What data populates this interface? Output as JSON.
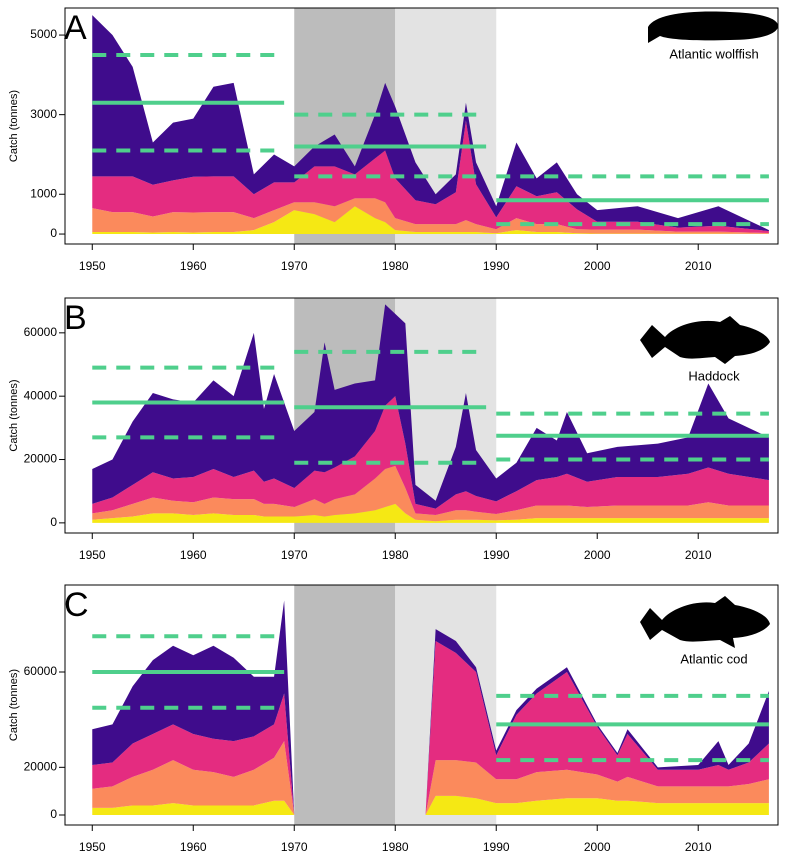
{
  "chart_data": [
    {
      "type": "area",
      "panel_label": "A",
      "species": "Atlantic wolffish",
      "ylabel": "Catch (tonnes)",
      "x": [
        1950,
        1952,
        1954,
        1956,
        1958,
        1960,
        1962,
        1964,
        1966,
        1968,
        1970,
        1972,
        1974,
        1976,
        1978,
        1979,
        1980,
        1982,
        1984,
        1986,
        1987,
        1988,
        1990,
        1992,
        1994,
        1996,
        1998,
        2000,
        2004,
        2008,
        2012,
        2017
      ],
      "series": [
        {
          "color": "#f5e814",
          "values": [
            50,
            50,
            50,
            40,
            50,
            40,
            50,
            50,
            100,
            300,
            600,
            500,
            300,
            700,
            400,
            300,
            100,
            50,
            50,
            50,
            50,
            50,
            20,
            100,
            50,
            50,
            20,
            10,
            10,
            10,
            10,
            5
          ]
        },
        {
          "color": "#fb8a5c",
          "values": [
            600,
            500,
            500,
            400,
            500,
            500,
            500,
            500,
            300,
            300,
            200,
            300,
            400,
            200,
            500,
            500,
            300,
            200,
            200,
            200,
            300,
            200,
            100,
            300,
            200,
            200,
            100,
            100,
            100,
            50,
            50,
            20
          ]
        },
        {
          "color": "#e42c80",
          "values": [
            800,
            900,
            900,
            800,
            800,
            900,
            900,
            900,
            600,
            700,
            500,
            900,
            1000,
            600,
            1000,
            1300,
            1000,
            600,
            500,
            800,
            2500,
            1000,
            300,
            800,
            700,
            800,
            500,
            200,
            200,
            100,
            150,
            50
          ]
        },
        {
          "color": "#3f0c8c",
          "values": [
            4050,
            3550,
            2750,
            1060,
            1450,
            1460,
            2250,
            2350,
            500,
            700,
            400,
            500,
            800,
            200,
            1100,
            1700,
            1800,
            950,
            250,
            450,
            450,
            550,
            280,
            1100,
            450,
            750,
            380,
            290,
            390,
            240,
            490,
            25
          ]
        }
      ],
      "xlim": [
        1947.3,
        2017.9
      ],
      "ylim": [
        -250,
        5680
      ],
      "xticks": [
        1950,
        1960,
        1970,
        1980,
        1990,
        2000,
        2010
      ],
      "yticks": [
        0,
        1000,
        3000,
        5000
      ],
      "shading": [
        {
          "xlim": [
            1970,
            1980
          ],
          "color": "#bcbcbc"
        },
        {
          "xlim": [
            1980,
            1990
          ],
          "color": "#e3e3e3"
        }
      ],
      "period_color": "#4fcf8c",
      "periods": [
        {
          "xlim": [
            1950,
            1969
          ],
          "mean": 3300,
          "upper": 4500,
          "lower": 2100
        },
        {
          "xlim": [
            1970,
            1989
          ],
          "mean": 2200,
          "upper": 3000,
          "lower": 1450
        },
        {
          "xlim": [
            1990,
            2017
          ],
          "mean": 850,
          "upper": 1450,
          "lower": 250
        }
      ]
    },
    {
      "type": "area",
      "panel_label": "B",
      "species": "Haddock",
      "ylabel": "Catch (tonnes)",
      "x": [
        1950,
        1952,
        1954,
        1956,
        1958,
        1960,
        1962,
        1964,
        1966,
        1967,
        1968,
        1970,
        1972,
        1973,
        1974,
        1976,
        1978,
        1979,
        1980,
        1981,
        1982,
        1984,
        1986,
        1987,
        1988,
        1990,
        1992,
        1994,
        1996,
        1997,
        1999,
        2002,
        2006,
        2009,
        2011,
        2013,
        2017
      ],
      "series": [
        {
          "color": "#f5e814",
          "values": [
            1000,
            1500,
            2000,
            3000,
            3000,
            2500,
            3000,
            2500,
            2500,
            2000,
            2000,
            2000,
            2500,
            2000,
            2500,
            3000,
            4000,
            5000,
            6000,
            3000,
            1000,
            500,
            1000,
            1000,
            1000,
            800,
            1000,
            1500,
            1500,
            1500,
            1500,
            1500,
            1500,
            1500,
            1500,
            1500,
            1500
          ]
        },
        {
          "color": "#fb8a5c",
          "values": [
            2000,
            2500,
            4000,
            5000,
            4000,
            4000,
            5000,
            5000,
            5000,
            4000,
            4000,
            3000,
            5000,
            4000,
            5000,
            6000,
            10000,
            12000,
            12000,
            8000,
            2000,
            2000,
            3000,
            3000,
            2500,
            2000,
            3000,
            4000,
            4000,
            4000,
            3500,
            4000,
            4000,
            4000,
            5000,
            4000,
            4000
          ]
        },
        {
          "color": "#e42c80",
          "values": [
            3000,
            4000,
            6000,
            8000,
            7000,
            8000,
            9000,
            7000,
            9000,
            7000,
            8000,
            6000,
            9000,
            10000,
            10000,
            12000,
            15000,
            20000,
            22000,
            14000,
            3000,
            2000,
            5000,
            6000,
            5000,
            4000,
            6000,
            8000,
            9000,
            10000,
            8000,
            9000,
            9000,
            10000,
            11000,
            10000,
            8000
          ]
        },
        {
          "color": "#3f0c8c",
          "values": [
            11000,
            12000,
            20000,
            25000,
            25000,
            23500,
            28000,
            25500,
            43500,
            23000,
            33000,
            18000,
            18500,
            41000,
            24500,
            23000,
            16000,
            32000,
            26000,
            38000,
            6000,
            2500,
            15000,
            31000,
            14500,
            7200,
            9000,
            16500,
            11500,
            19500,
            9000,
            9500,
            10500,
            11500,
            26500,
            17500,
            13500
          ]
        }
      ],
      "xlim": [
        1947.3,
        2017.9
      ],
      "ylim": [
        -3200,
        71000
      ],
      "xticks": [
        1950,
        1960,
        1970,
        1980,
        1990,
        2000,
        2010
      ],
      "yticks": [
        0,
        20000,
        40000,
        60000
      ],
      "shading": [
        {
          "xlim": [
            1970,
            1980
          ],
          "color": "#bcbcbc"
        },
        {
          "xlim": [
            1980,
            1990
          ],
          "color": "#e3e3e3"
        }
      ],
      "period_color": "#4fcf8c",
      "periods": [
        {
          "xlim": [
            1950,
            1969
          ],
          "mean": 38000,
          "upper": 49000,
          "lower": 27000
        },
        {
          "xlim": [
            1970,
            1989
          ],
          "mean": 36500,
          "upper": 54000,
          "lower": 19000
        },
        {
          "xlim": [
            1990,
            2017
          ],
          "mean": 27500,
          "upper": 34500,
          "lower": 20000
        }
      ]
    },
    {
      "type": "area",
      "panel_label": "C",
      "species": "Atlantic cod",
      "ylabel": "Catch (tonnes)",
      "x": [
        1950,
        1952,
        1954,
        1956,
        1958,
        1960,
        1962,
        1964,
        1966,
        1968,
        1969,
        1970,
        1976,
        1983,
        1984,
        1986,
        1988,
        1990,
        1992,
        1994,
        1997,
        2000,
        2002,
        2003,
        2006,
        2010,
        2012,
        2013,
        2015,
        2017
      ],
      "series": [
        {
          "color": "#f5e814",
          "values": [
            3000,
            3000,
            4000,
            4000,
            5000,
            4000,
            4000,
            4000,
            4000,
            6000,
            6000,
            0,
            null,
            0,
            8000,
            8000,
            7000,
            5000,
            5000,
            6000,
            7000,
            7000,
            6000,
            6000,
            5000,
            5000,
            5000,
            5000,
            5000,
            5000
          ]
        },
        {
          "color": "#fb8a5c",
          "values": [
            8000,
            9000,
            12000,
            15000,
            18000,
            15000,
            14000,
            12000,
            15000,
            18000,
            25000,
            0,
            null,
            0,
            15000,
            15000,
            15000,
            10000,
            10000,
            12000,
            12000,
            10000,
            8000,
            10000,
            7000,
            7000,
            7000,
            7000,
            8000,
            10000
          ]
        },
        {
          "color": "#e42c80",
          "values": [
            10000,
            10000,
            14000,
            15000,
            15000,
            15000,
            14000,
            15000,
            14000,
            14000,
            20000,
            0,
            null,
            0,
            50000,
            45000,
            38000,
            10000,
            27000,
            33000,
            41000,
            20000,
            11000,
            18000,
            7000,
            7000,
            9000,
            7000,
            9000,
            15000
          ]
        },
        {
          "color": "#3f0c8c",
          "values": [
            15000,
            16000,
            24000,
            31000,
            33000,
            33000,
            39000,
            35000,
            25000,
            20000,
            39000,
            0,
            null,
            0,
            5000,
            5000,
            2000,
            2000,
            2000,
            2000,
            2000,
            1000,
            1000,
            2000,
            1000,
            2000,
            10000,
            2000,
            8000,
            22000
          ]
        }
      ],
      "xlim": [
        1947.3,
        2017.9
      ],
      "ylim": [
        -4200,
        96500
      ],
      "xticks": [
        1950,
        1960,
        1970,
        1980,
        1990,
        2000,
        2010
      ],
      "yticks": [
        0,
        20000,
        60000
      ],
      "shading": [
        {
          "xlim": [
            1970,
            1980
          ],
          "color": "#bcbcbc"
        },
        {
          "xlim": [
            1980,
            1990
          ],
          "color": "#e3e3e3"
        }
      ],
      "period_color": "#4fcf8c",
      "periods": [
        {
          "xlim": [
            1950,
            1969
          ],
          "mean": 60000,
          "upper": 75000,
          "lower": 45000
        },
        {
          "xlim": [
            1990,
            2017
          ],
          "mean": 38000,
          "upper": 50000,
          "lower": 23000
        }
      ]
    }
  ]
}
